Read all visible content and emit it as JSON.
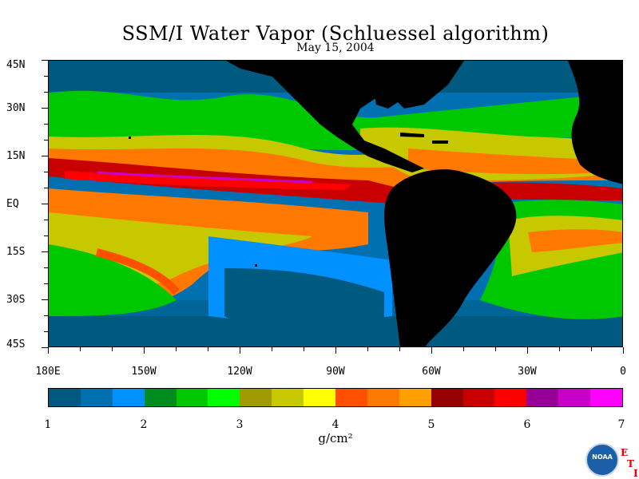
{
  "title": "SSM/I Water Vapor (Schluessel algorithm)",
  "subtitle": "May 15, 2004",
  "lat_labels": [
    "45N",
    "30N",
    "15N",
    "EQ",
    "15S",
    "30S",
    "45S"
  ],
  "lon_labels": [
    "180E",
    "150W",
    "120W",
    "90W",
    "60W",
    "30W",
    "0"
  ],
  "colorbar": {
    "colors": [
      "#005a7f",
      "#0070b0",
      "#0090ff",
      "#008c1e",
      "#00c800",
      "#00ff00",
      "#a09b00",
      "#c8c800",
      "#ffff00",
      "#ff5000",
      "#ff7800",
      "#ffa000",
      "#960000",
      "#c80000",
      "#ff0000",
      "#960096",
      "#c800c8",
      "#ff00ff"
    ],
    "tick_labels": [
      "1",
      "2",
      "3",
      "4",
      "5",
      "6",
      "7"
    ],
    "units": "g/cm²"
  },
  "logo": {
    "text": "NOAA"
  },
  "mark": {
    "letters": [
      "E",
      "T",
      "I"
    ]
  },
  "colors": {
    "land": "#000000",
    "ocean_low": "#0070b0"
  }
}
